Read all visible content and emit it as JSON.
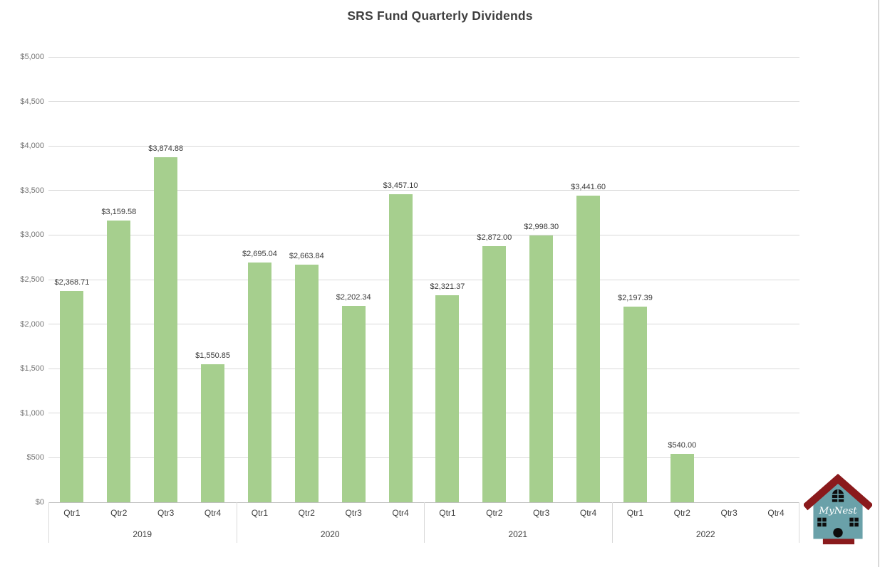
{
  "title": "SRS Fund Quarterly Dividends",
  "chart_data": {
    "type": "bar",
    "title": "SRS Fund Quarterly Dividends",
    "ylim": [
      0,
      5000
    ],
    "ytick_step": 500,
    "yticks": [
      "$0",
      "$500",
      "$1,000",
      "$1,500",
      "$2,000",
      "$2,500",
      "$3,000",
      "$3,500",
      "$4,000",
      "$4,500",
      "$5,000"
    ],
    "grid": true,
    "legend": "none",
    "bar_color": "#a6cf8e",
    "categories_level1": [
      "Qtr1",
      "Qtr2",
      "Qtr3",
      "Qtr4"
    ],
    "groups": [
      {
        "year": "2019",
        "quarters": [
          "Qtr1",
          "Qtr2",
          "Qtr3",
          "Qtr4"
        ],
        "values": [
          2368.71,
          3159.58,
          3874.88,
          1550.85
        ],
        "labels": [
          "$2,368.71",
          "$3,159.58",
          "$3,874.88",
          "$1,550.85"
        ]
      },
      {
        "year": "2020",
        "quarters": [
          "Qtr1",
          "Qtr2",
          "Qtr3",
          "Qtr4"
        ],
        "values": [
          2695.04,
          2663.84,
          2202.34,
          3457.1
        ],
        "labels": [
          "$2,695.04",
          "$2,663.84",
          "$2,202.34",
          "$3,457.10"
        ]
      },
      {
        "year": "2021",
        "quarters": [
          "Qtr1",
          "Qtr2",
          "Qtr3",
          "Qtr4"
        ],
        "values": [
          2321.37,
          2872.0,
          2998.3,
          3441.6
        ],
        "labels": [
          "$2,321.37",
          "$2,872.00",
          "$2,998.30",
          "$3,441.60"
        ]
      },
      {
        "year": "2022",
        "quarters": [
          "Qtr1",
          "Qtr2",
          "Qtr3",
          "Qtr4"
        ],
        "values": [
          2197.39,
          540.0,
          null,
          null
        ],
        "labels": [
          "$2,197.39",
          "$540.00",
          null,
          null
        ]
      }
    ]
  },
  "colors": {
    "bar": "#a6cf8e",
    "gridline": "#d9d9d9",
    "axis_line": "#bfbfbf",
    "title_text": "#3f3f3f",
    "ytick_text": "#757575",
    "category_text": "#3f3f3f",
    "data_label_text": "#3a3a3a",
    "logo_body": "#6aa1a9",
    "logo_roof": "#8a1a1c"
  },
  "logo": {
    "text": "MyNest"
  }
}
